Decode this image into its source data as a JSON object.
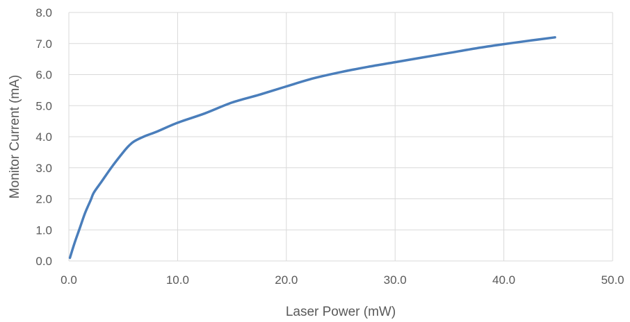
{
  "chart_data": {
    "type": "line",
    "title": "",
    "xlabel": "Laser Power (mW)",
    "ylabel": "Monitor Current (mA)",
    "xlim": [
      0,
      50
    ],
    "ylim": [
      0,
      8
    ],
    "x_ticks": [
      0,
      10,
      20,
      30,
      40,
      50
    ],
    "x_tick_labels": [
      "0.0",
      "10.0",
      "20.0",
      "30.0",
      "40.0",
      "50.0"
    ],
    "y_ticks": [
      0,
      1,
      2,
      3,
      4,
      5,
      6,
      7,
      8
    ],
    "y_tick_labels": [
      "0.0",
      "1.0",
      "2.0",
      "3.0",
      "4.0",
      "5.0",
      "6.0",
      "7.0",
      "8.0"
    ],
    "grid": true,
    "legend": "none",
    "series": [
      {
        "color": "#4a7ebb",
        "x": [
          0.1,
          0.5,
          1.0,
          1.5,
          2.0,
          2.3,
          3.0,
          4.0,
          5.0,
          5.5,
          6.0,
          7.0,
          8.0,
          10.0,
          12.5,
          15.0,
          17.5,
          20.0,
          22.5,
          25.0,
          27.5,
          30.0,
          32.5,
          35.0,
          37.5,
          40.0,
          42.5,
          44.7
        ],
        "y": [
          0.1,
          0.55,
          1.05,
          1.55,
          1.95,
          2.2,
          2.55,
          3.05,
          3.5,
          3.7,
          3.85,
          4.02,
          4.15,
          4.45,
          4.75,
          5.1,
          5.35,
          5.62,
          5.88,
          6.08,
          6.25,
          6.4,
          6.55,
          6.7,
          6.85,
          6.98,
          7.1,
          7.2
        ]
      }
    ]
  }
}
